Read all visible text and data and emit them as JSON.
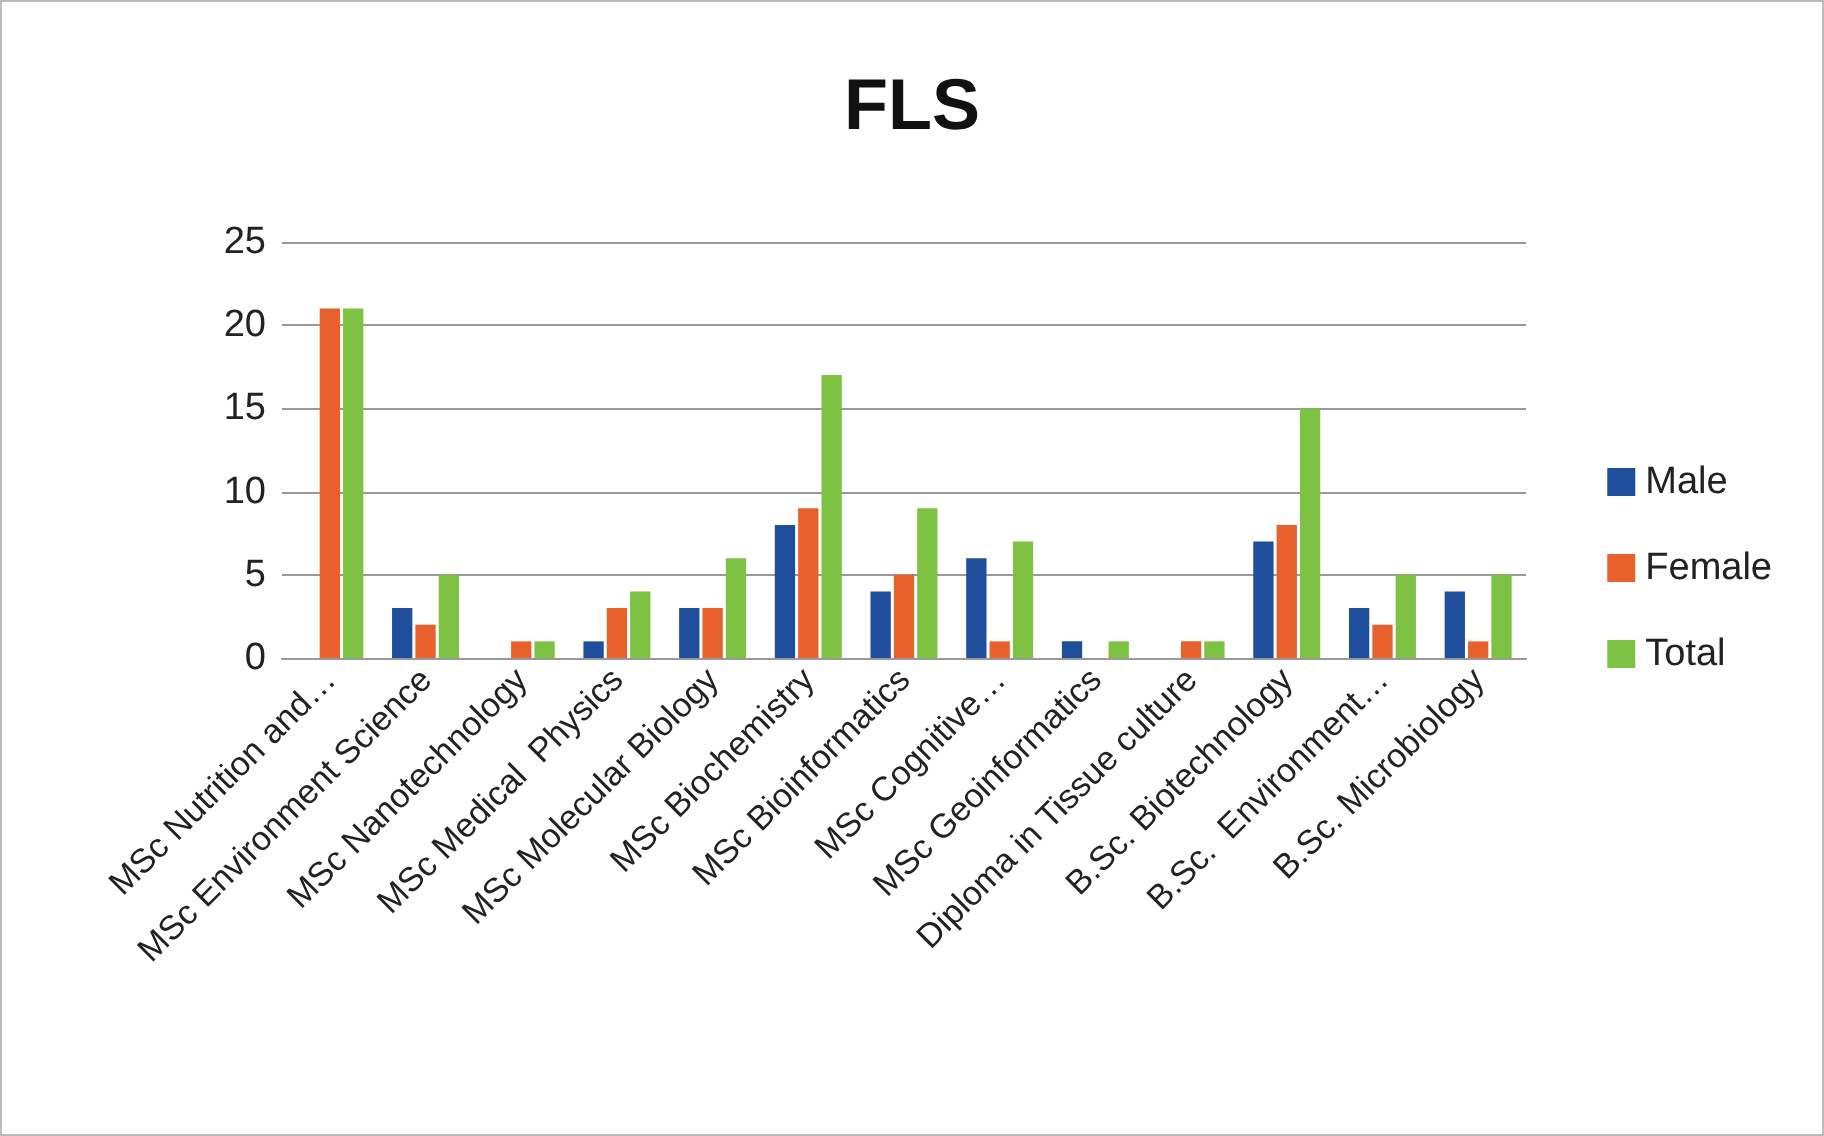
{
  "chart_data": {
    "type": "bar",
    "title": "FLS",
    "categories": [
      "MSc Nutrition and…",
      "MSc Environment Science",
      "MSc Nanotechnology",
      "MSc Medical  Physics",
      "MSc Molecular Biology",
      "MSc Biochemistry",
      "MSc Bioinformatics",
      "MSc Cognitive…",
      "MSc Geoinformatics",
      "Diploma in Tissue culture",
      "B.Sc. Biotechnology",
      "B.Sc.  Environment…",
      "B.Sc. Microbiology"
    ],
    "series": [
      {
        "name": "Male",
        "color": "#1f4e9c",
        "values": [
          0,
          3,
          0,
          1,
          3,
          8,
          4,
          6,
          1,
          0,
          7,
          3,
          4
        ]
      },
      {
        "name": "Female",
        "color": "#e8612c",
        "values": [
          21,
          2,
          1,
          3,
          3,
          9,
          5,
          1,
          0,
          1,
          8,
          2,
          1
        ]
      },
      {
        "name": "Total",
        "color": "#7dc242",
        "values": [
          21,
          5,
          1,
          4,
          6,
          17,
          9,
          7,
          1,
          1,
          15,
          5,
          5
        ]
      }
    ],
    "ylim": [
      0,
      25
    ],
    "yticks": [
      0,
      5,
      10,
      15,
      20,
      25
    ],
    "grid": "y",
    "legend": "right"
  }
}
